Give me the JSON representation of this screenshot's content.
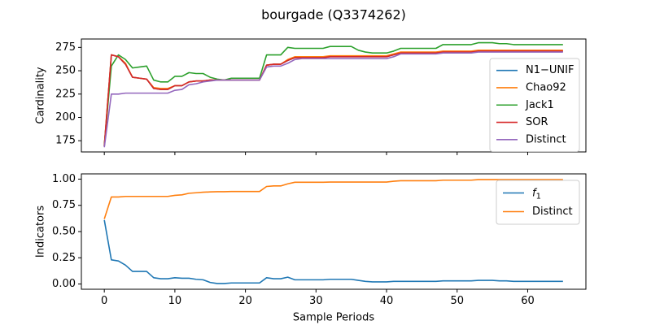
{
  "figure": {
    "title": "bourgade (Q3374262)",
    "xlabel": "Sample Periods"
  },
  "chart_data": [
    {
      "type": "line",
      "ylabel": "Cardinality",
      "xlim": [
        -3.25,
        68.25
      ],
      "ylim": [
        163,
        284
      ],
      "xticks": [
        0,
        10,
        20,
        30,
        40,
        50,
        60
      ],
      "yticks": [
        175,
        200,
        225,
        250,
        275
      ],
      "show_xtick_labels": false,
      "grid": false,
      "legend_position": "center-right",
      "x": [
        0,
        1,
        2,
        3,
        4,
        5,
        6,
        7,
        8,
        9,
        10,
        11,
        12,
        13,
        14,
        15,
        16,
        17,
        18,
        19,
        20,
        21,
        22,
        23,
        24,
        25,
        26,
        27,
        28,
        29,
        30,
        31,
        32,
        33,
        34,
        35,
        36,
        37,
        38,
        39,
        40,
        41,
        42,
        43,
        44,
        45,
        46,
        47,
        48,
        49,
        50,
        51,
        52,
        53,
        54,
        55,
        56,
        57,
        58,
        59,
        60,
        61,
        62,
        63,
        64,
        65
      ],
      "series": [
        {
          "name": "N1−UNIF",
          "color": "#1f77b4",
          "values": [
            169,
            267,
            265,
            257,
            243,
            242,
            241,
            231,
            230,
            230,
            234,
            234,
            238,
            239,
            239,
            240,
            240,
            240,
            240,
            240,
            240,
            240,
            240,
            256,
            257,
            257,
            261,
            264,
            264,
            264,
            264,
            264,
            265,
            265,
            265,
            265,
            265,
            265,
            265,
            265,
            265,
            267,
            269,
            269,
            269,
            269,
            269,
            269,
            270,
            270,
            270,
            270,
            270,
            271,
            271,
            271,
            271,
            271,
            271,
            271,
            271,
            271,
            271,
            271,
            271,
            271
          ]
        },
        {
          "name": "Chao92",
          "color": "#ff7f0e",
          "values": [
            170,
            267,
            265,
            258,
            243,
            242,
            241,
            232,
            231,
            231,
            234,
            234,
            238,
            239,
            239,
            240,
            240,
            240,
            240,
            240,
            240,
            240,
            240,
            256,
            257,
            257,
            262,
            265,
            265,
            265,
            265,
            265,
            266,
            266,
            266,
            266,
            266,
            266,
            266,
            266,
            266,
            268,
            270,
            270,
            270,
            270,
            270,
            270,
            271,
            271,
            271,
            271,
            271,
            272,
            272,
            272,
            272,
            272,
            272,
            272,
            272,
            272,
            272,
            272,
            272,
            272
          ]
        },
        {
          "name": "Jack1",
          "color": "#2ca02c",
          "values": [
            170,
            255,
            267,
            262,
            253,
            254,
            255,
            240,
            238,
            238,
            244,
            244,
            248,
            247,
            247,
            243,
            241,
            240,
            242,
            242,
            242,
            242,
            242,
            267,
            267,
            267,
            275,
            274,
            274,
            274,
            274,
            274,
            276,
            276,
            276,
            276,
            272,
            270,
            269,
            269,
            269,
            271,
            274,
            274,
            274,
            274,
            274,
            274,
            278,
            278,
            278,
            278,
            278,
            280,
            280,
            280,
            279,
            279,
            278,
            278,
            278,
            278,
            278,
            278,
            278,
            278
          ]
        },
        {
          "name": "SOR",
          "color": "#d62728",
          "values": [
            169,
            267,
            265,
            257,
            243,
            242,
            241,
            231,
            230,
            230,
            234,
            234,
            238,
            239,
            239,
            240,
            240,
            240,
            240,
            240,
            240,
            240,
            240,
            256,
            257,
            257,
            261,
            264,
            264,
            264,
            264,
            264,
            265,
            265,
            265,
            265,
            265,
            265,
            265,
            265,
            265,
            267,
            269,
            269,
            269,
            269,
            269,
            269,
            270,
            270,
            270,
            270,
            270,
            271,
            271,
            271,
            271,
            271,
            271,
            271,
            271,
            271,
            271,
            271,
            271,
            271
          ]
        },
        {
          "name": "Distinct",
          "color": "#9467bd",
          "values": [
            168,
            225,
            225,
            226,
            226,
            226,
            226,
            226,
            226,
            226,
            229,
            230,
            235,
            236,
            238,
            239,
            240,
            240,
            240,
            240,
            240,
            240,
            240,
            254,
            255,
            255,
            258,
            262,
            263,
            263,
            263,
            263,
            263,
            263,
            263,
            263,
            263,
            263,
            263,
            263,
            263,
            265,
            268,
            268,
            268,
            268,
            268,
            268,
            269,
            269,
            269,
            269,
            269,
            270,
            270,
            270,
            270,
            270,
            270,
            270,
            270,
            270,
            270,
            270,
            270,
            270
          ]
        }
      ]
    },
    {
      "type": "line",
      "ylabel": "Indicators",
      "xlim": [
        -3.25,
        68.25
      ],
      "ylim": [
        -0.05,
        1.05
      ],
      "xticks": [
        0,
        10,
        20,
        30,
        40,
        50,
        60
      ],
      "yticks": [
        0.0,
        0.25,
        0.5,
        0.75,
        1.0
      ],
      "ytick_labels": [
        "0.00",
        "0.25",
        "0.50",
        "0.75",
        "1.00"
      ],
      "show_xtick_labels": true,
      "grid": false,
      "legend_position": "top-right",
      "x": [
        0,
        1,
        2,
        3,
        4,
        5,
        6,
        7,
        8,
        9,
        10,
        11,
        12,
        13,
        14,
        15,
        16,
        17,
        18,
        19,
        20,
        21,
        22,
        23,
        24,
        25,
        26,
        27,
        28,
        29,
        30,
        31,
        32,
        33,
        34,
        35,
        36,
        37,
        38,
        39,
        40,
        41,
        42,
        43,
        44,
        45,
        46,
        47,
        48,
        49,
        50,
        51,
        52,
        53,
        54,
        55,
        56,
        57,
        58,
        59,
        60,
        61,
        62,
        63,
        64,
        65
      ],
      "series": [
        {
          "name": "f",
          "name_subscript": "1",
          "color": "#1f77b4",
          "values": [
            0.61,
            0.23,
            0.22,
            0.18,
            0.12,
            0.12,
            0.12,
            0.06,
            0.05,
            0.05,
            0.06,
            0.055,
            0.055,
            0.045,
            0.04,
            0.015,
            0.005,
            0.005,
            0.01,
            0.01,
            0.01,
            0.01,
            0.01,
            0.06,
            0.05,
            0.05,
            0.065,
            0.04,
            0.04,
            0.04,
            0.04,
            0.04,
            0.045,
            0.045,
            0.045,
            0.045,
            0.035,
            0.025,
            0.02,
            0.02,
            0.02,
            0.025,
            0.025,
            0.025,
            0.025,
            0.025,
            0.025,
            0.025,
            0.03,
            0.03,
            0.03,
            0.03,
            0.03,
            0.035,
            0.035,
            0.035,
            0.03,
            0.03,
            0.025,
            0.025,
            0.025,
            0.025,
            0.025,
            0.025,
            0.025,
            0.025
          ]
        },
        {
          "name": "Distinct",
          "color": "#ff7f0e",
          "values": [
            0.62,
            0.83,
            0.83,
            0.835,
            0.835,
            0.835,
            0.835,
            0.835,
            0.835,
            0.835,
            0.845,
            0.85,
            0.865,
            0.87,
            0.875,
            0.878,
            0.88,
            0.88,
            0.882,
            0.882,
            0.882,
            0.882,
            0.882,
            0.93,
            0.935,
            0.935,
            0.955,
            0.97,
            0.97,
            0.97,
            0.97,
            0.97,
            0.972,
            0.972,
            0.972,
            0.972,
            0.972,
            0.972,
            0.972,
            0.972,
            0.972,
            0.98,
            0.985,
            0.985,
            0.985,
            0.985,
            0.985,
            0.985,
            0.99,
            0.99,
            0.99,
            0.99,
            0.99,
            0.995,
            0.995,
            0.995,
            0.995,
            0.995,
            0.995,
            0.995,
            0.995,
            0.995,
            0.995,
            0.995,
            0.995,
            0.995
          ]
        }
      ]
    }
  ]
}
